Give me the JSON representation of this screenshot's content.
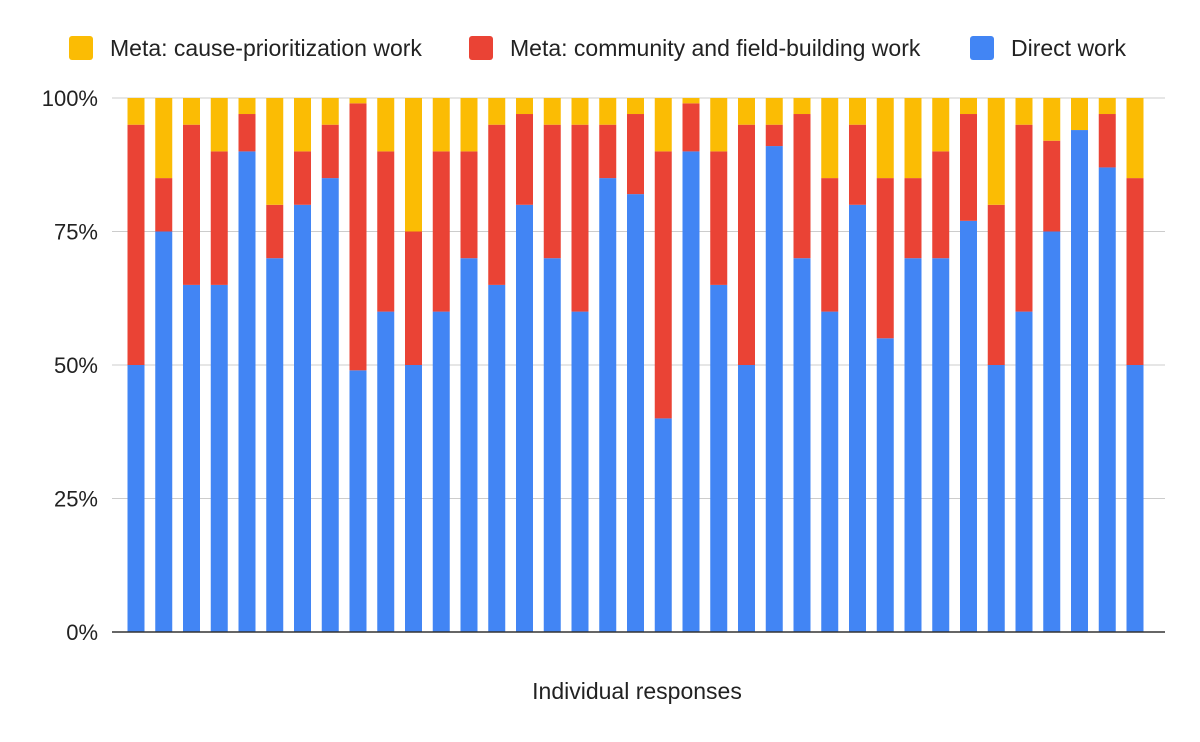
{
  "chart_data": {
    "type": "bar",
    "stacked": true,
    "title": "",
    "xlabel": "Individual responses",
    "ylabel": "",
    "ylim": [
      0,
      100
    ],
    "y_ticks": [
      "0%",
      "25%",
      "50%",
      "75%",
      "100%"
    ],
    "y_tick_values": [
      0,
      25,
      50,
      75,
      100
    ],
    "grid": true,
    "legend_position": "top",
    "series": [
      {
        "name": "Direct work",
        "color": "#4285F4",
        "values": [
          50,
          75,
          65,
          65,
          90,
          70,
          80,
          85,
          49,
          60,
          50,
          60,
          70,
          65,
          80,
          70,
          60,
          85,
          82,
          40,
          90,
          65,
          50,
          91,
          70,
          60,
          80,
          55,
          70,
          70,
          77,
          50,
          60,
          75,
          94,
          87,
          50
        ]
      },
      {
        "name": "Meta: community and field-building work",
        "color": "#EA4335",
        "values": [
          45,
          10,
          30,
          25,
          7,
          10,
          10,
          10,
          50,
          30,
          25,
          30,
          20,
          30,
          17,
          25,
          35,
          10,
          15,
          50,
          9,
          25,
          45,
          4,
          27,
          25,
          15,
          30,
          15,
          20,
          20,
          30,
          35,
          17,
          0,
          10,
          35
        ]
      },
      {
        "name": "Meta: cause-prioritization work",
        "color": "#FBBC04",
        "values": [
          5,
          15,
          5,
          10,
          3,
          20,
          10,
          5,
          1,
          10,
          25,
          10,
          10,
          5,
          3,
          5,
          5,
          5,
          3,
          10,
          1,
          10,
          5,
          5,
          3,
          15,
          5,
          15,
          15,
          10,
          3,
          20,
          5,
          8,
          6,
          3,
          15
        ]
      }
    ],
    "legend_order": [
      "Meta: cause-prioritization work",
      "Meta: community and field-building work",
      "Direct work"
    ]
  }
}
